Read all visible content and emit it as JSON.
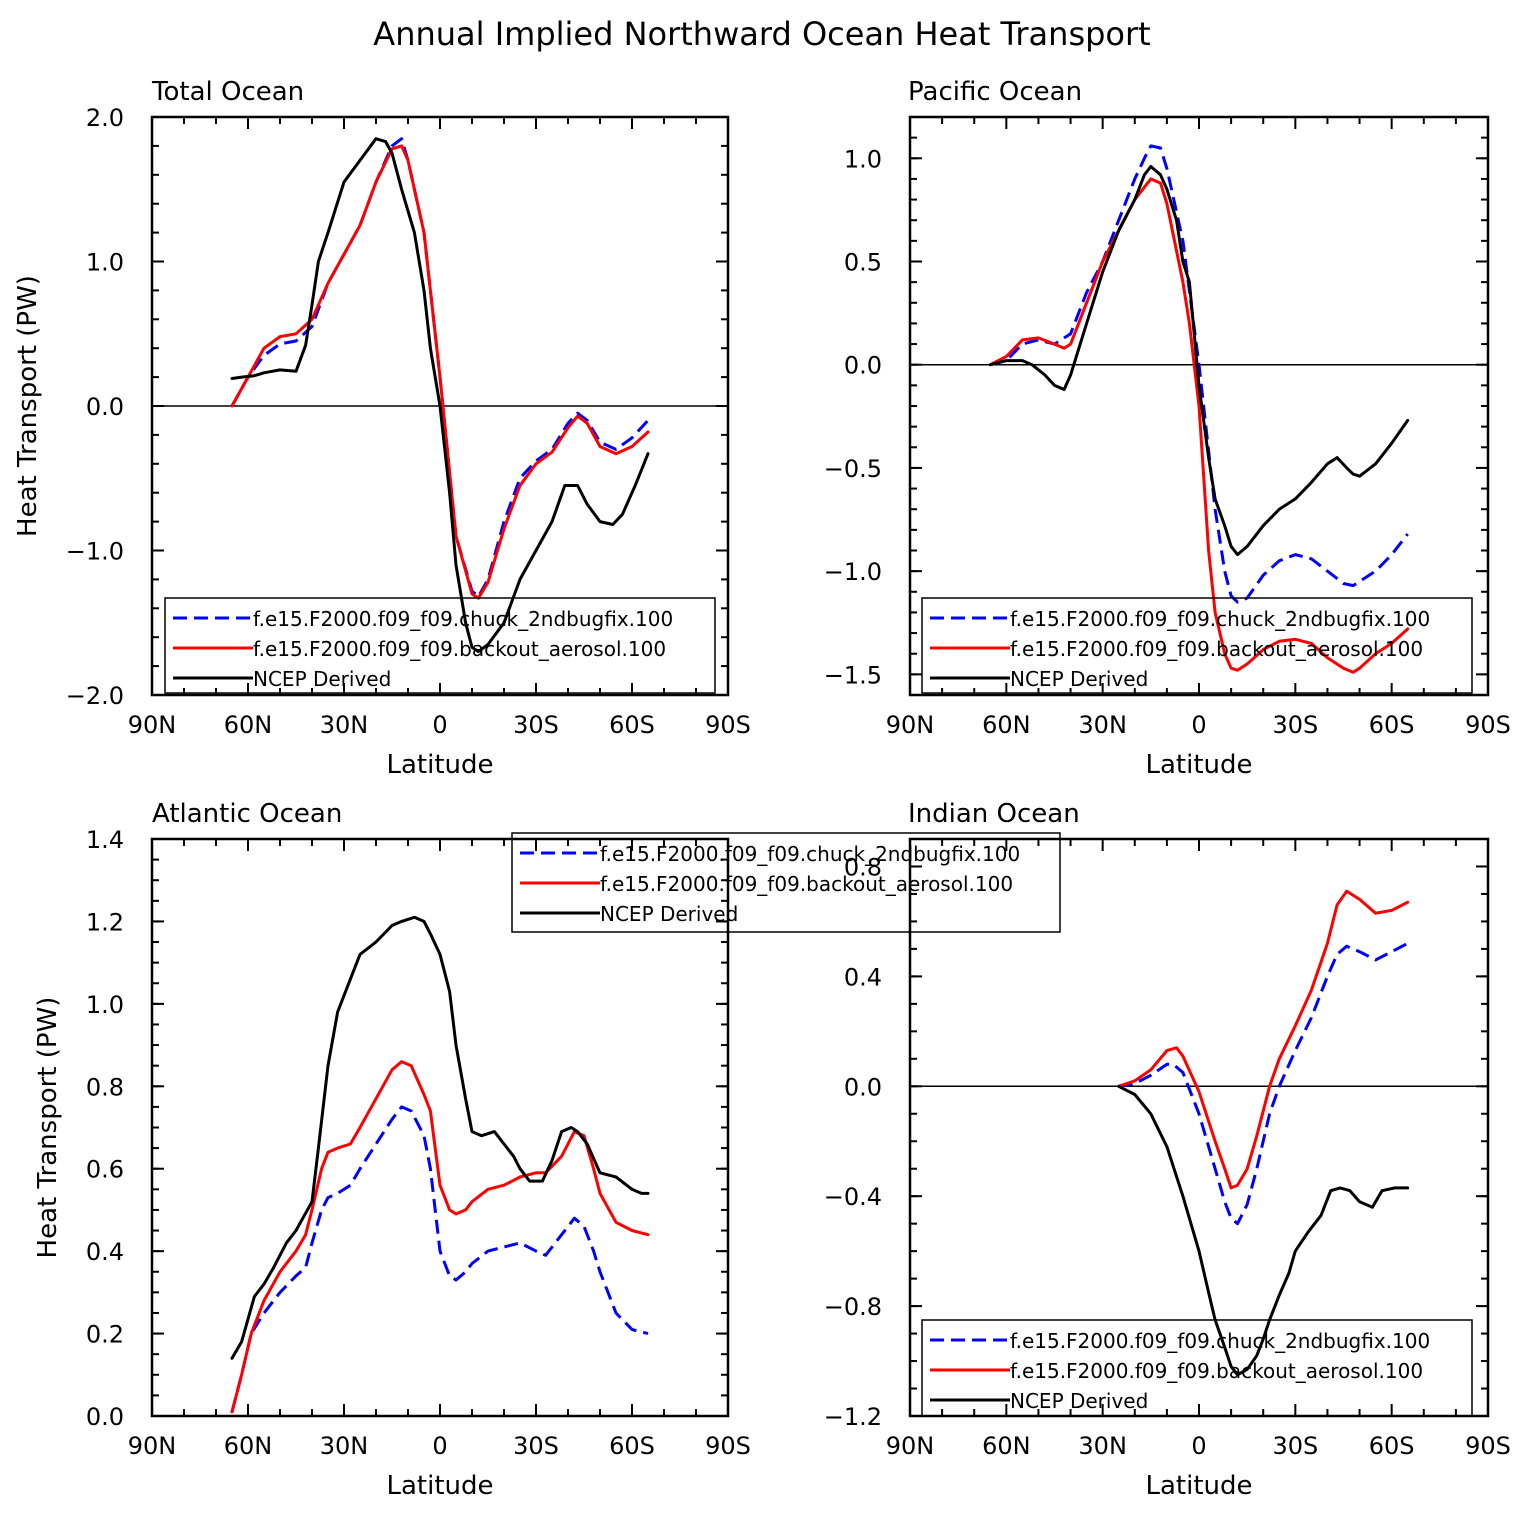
{
  "figure_title": "Annual Implied Northward Ocean Heat Transport",
  "colors": {
    "model1": "#0000ff",
    "model2": "#ff0000",
    "ncep": "#000000"
  },
  "legend": [
    {
      "label": "f.e15.F2000.f09_f09.chuck_2ndbugfix.100",
      "color": "#0000ff",
      "style": "dashed"
    },
    {
      "label": "f.e15.F2000.f09_f09.backout_aerosol.100",
      "color": "#ff0000",
      "style": "solid"
    },
    {
      "label": "NCEP Derived",
      "color": "#000000",
      "style": "solid"
    }
  ],
  "chart_data": [
    {
      "type": "line",
      "title": "Total Ocean",
      "xlabel": "Latitude",
      "ylabel": "Heat Transport (PW)",
      "xlim": [
        90,
        -90
      ],
      "ylim": [
        -2.0,
        2.0
      ],
      "x_ticks": [
        "90N",
        "60N",
        "30N",
        "0",
        "30S",
        "60S",
        "90S"
      ],
      "y_ticks": [
        "−2.0",
        "−1.0",
        "0.0",
        "1.0",
        "2.0"
      ],
      "series": [
        {
          "name": "f.e15.F2000.f09_f09.chuck_2ndbugfix.100",
          "x": [
            65,
            60,
            55,
            50,
            45,
            40,
            35,
            30,
            25,
            20,
            15,
            12,
            10,
            5,
            0,
            -5,
            -10,
            -12,
            -15,
            -20,
            -25,
            -30,
            -35,
            -40,
            -43,
            -46,
            -50,
            -55,
            -60,
            -65
          ],
          "y": [
            0.0,
            0.2,
            0.35,
            0.43,
            0.45,
            0.55,
            0.85,
            1.05,
            1.25,
            1.55,
            1.8,
            1.85,
            1.7,
            1.2,
            0.2,
            -0.9,
            -1.28,
            -1.32,
            -1.2,
            -0.8,
            -0.5,
            -0.38,
            -0.3,
            -0.12,
            -0.05,
            -0.1,
            -0.25,
            -0.3,
            -0.22,
            -0.1
          ]
        },
        {
          "name": "f.e15.F2000.f09_f09.backout_aerosol.100",
          "x": [
            65,
            60,
            55,
            50,
            45,
            40,
            35,
            30,
            25,
            20,
            15,
            12,
            10,
            5,
            0,
            -5,
            -10,
            -12,
            -15,
            -20,
            -25,
            -30,
            -35,
            -40,
            -43,
            -46,
            -50,
            -55,
            -60,
            -65
          ],
          "y": [
            0.0,
            0.2,
            0.4,
            0.48,
            0.5,
            0.6,
            0.85,
            1.05,
            1.25,
            1.55,
            1.78,
            1.8,
            1.7,
            1.2,
            0.2,
            -0.9,
            -1.3,
            -1.33,
            -1.22,
            -0.85,
            -0.55,
            -0.4,
            -0.32,
            -0.15,
            -0.07,
            -0.12,
            -0.28,
            -0.33,
            -0.28,
            -0.18
          ]
        },
        {
          "name": "NCEP Derived",
          "x": [
            65,
            62,
            58,
            55,
            50,
            45,
            42,
            40,
            38,
            35,
            30,
            25,
            20,
            17,
            15,
            12,
            8,
            5,
            3,
            0,
            -3,
            -5,
            -8,
            -10,
            -12,
            -15,
            -20,
            -25,
            -30,
            -35,
            -39,
            -43,
            -46,
            -50,
            -54,
            -57,
            -61,
            -65
          ],
          "y": [
            0.19,
            0.2,
            0.21,
            0.23,
            0.25,
            0.24,
            0.42,
            0.7,
            1.0,
            1.2,
            1.55,
            1.7,
            1.85,
            1.83,
            1.75,
            1.5,
            1.2,
            0.8,
            0.4,
            0.0,
            -0.6,
            -1.1,
            -1.5,
            -1.67,
            -1.7,
            -1.65,
            -1.5,
            -1.2,
            -1.0,
            -0.8,
            -0.55,
            -0.55,
            -0.68,
            -0.8,
            -0.82,
            -0.75,
            -0.55,
            -0.33
          ]
        }
      ]
    },
    {
      "type": "line",
      "title": "Pacific Ocean",
      "xlabel": "Latitude",
      "ylabel": "",
      "xlim": [
        90,
        -90
      ],
      "ylim": [
        -1.6,
        1.2
      ],
      "x_ticks": [
        "90N",
        "60N",
        "30N",
        "0",
        "30S",
        "60S",
        "90S"
      ],
      "y_ticks": [
        "−1.5",
        "−1.0",
        "−0.5",
        "0.0",
        "0.5",
        "1.0"
      ],
      "series": [
        {
          "name": "f.e15.F2000.f09_f09.chuck_2ndbugfix.100",
          "x": [
            65,
            60,
            55,
            50,
            45,
            40,
            35,
            30,
            25,
            20,
            17,
            15,
            12,
            10,
            5,
            0,
            -5,
            -8,
            -10,
            -12,
            -15,
            -20,
            -25,
            -30,
            -35,
            -40,
            -45,
            -48,
            -50,
            -55,
            -60,
            -65
          ],
          "y": [
            0.0,
            0.02,
            0.1,
            0.12,
            0.1,
            0.15,
            0.35,
            0.5,
            0.7,
            0.9,
            1.0,
            1.06,
            1.05,
            0.95,
            0.6,
            0.0,
            -0.7,
            -1.0,
            -1.12,
            -1.15,
            -1.13,
            -1.02,
            -0.95,
            -0.92,
            -0.94,
            -1.0,
            -1.06,
            -1.07,
            -1.05,
            -1.0,
            -0.92,
            -0.82
          ]
        },
        {
          "name": "f.e15.F2000.f09_f09.backout_aerosol.100",
          "x": [
            65,
            60,
            55,
            50,
            45,
            42,
            40,
            35,
            30,
            25,
            20,
            15,
            12,
            10,
            5,
            3,
            0,
            -3,
            -5,
            -8,
            -10,
            -12,
            -15,
            -20,
            -25,
            -30,
            -35,
            -40,
            -45,
            -48,
            -50,
            -55,
            -60,
            -65
          ],
          "y": [
            0.0,
            0.04,
            0.12,
            0.13,
            0.1,
            0.08,
            0.1,
            0.3,
            0.5,
            0.65,
            0.8,
            0.9,
            0.88,
            0.78,
            0.4,
            0.2,
            -0.2,
            -0.9,
            -1.2,
            -1.4,
            -1.47,
            -1.48,
            -1.45,
            -1.38,
            -1.34,
            -1.33,
            -1.35,
            -1.42,
            -1.47,
            -1.49,
            -1.47,
            -1.4,
            -1.35,
            -1.28
          ]
        },
        {
          "name": "NCEP Derived",
          "x": [
            65,
            60,
            55,
            52,
            48,
            45,
            42,
            40,
            35,
            30,
            25,
            20,
            17,
            15,
            12,
            10,
            7,
            5,
            3,
            0,
            -3,
            -5,
            -8,
            -10,
            -12,
            -15,
            -20,
            -25,
            -30,
            -35,
            -40,
            -43,
            -46,
            -48,
            -50,
            -55,
            -60,
            -65
          ],
          "y": [
            0.0,
            0.02,
            0.02,
            0.0,
            -0.05,
            -0.1,
            -0.12,
            -0.05,
            0.2,
            0.45,
            0.65,
            0.8,
            0.92,
            0.96,
            0.92,
            0.85,
            0.7,
            0.5,
            0.4,
            -0.1,
            -0.45,
            -0.65,
            -0.78,
            -0.88,
            -0.92,
            -0.88,
            -0.78,
            -0.7,
            -0.65,
            -0.57,
            -0.48,
            -0.45,
            -0.5,
            -0.53,
            -0.54,
            -0.48,
            -0.38,
            -0.27
          ]
        }
      ]
    },
    {
      "type": "line",
      "title": "Atlantic Ocean",
      "xlabel": "Latitude",
      "ylabel": "Heat Transport (PW)",
      "xlim": [
        90,
        -90
      ],
      "ylim": [
        0.0,
        1.4
      ],
      "x_ticks": [
        "90N",
        "60N",
        "30N",
        "0",
        "30S",
        "60S",
        "90S"
      ],
      "y_ticks": [
        "0.0",
        "0.2",
        "0.4",
        "0.6",
        "0.8",
        "1.0",
        "1.2",
        "1.4"
      ],
      "series": [
        {
          "name": "f.e15.F2000.f09_f09.chuck_2ndbugfix.100",
          "x": [
            65,
            62,
            59,
            55,
            50,
            45,
            42,
            40,
            37,
            35,
            32,
            28,
            25,
            20,
            15,
            12,
            9,
            5,
            3,
            0,
            -3,
            -5,
            -8,
            -10,
            -15,
            -20,
            -25,
            -30,
            -33,
            -38,
            -42,
            -45,
            -48,
            -50,
            -55,
            -60,
            -65
          ],
          "y": [
            0.01,
            0.1,
            0.2,
            0.25,
            0.3,
            0.34,
            0.36,
            0.42,
            0.5,
            0.53,
            0.54,
            0.56,
            0.6,
            0.66,
            0.72,
            0.75,
            0.74,
            0.68,
            0.6,
            0.4,
            0.34,
            0.33,
            0.35,
            0.37,
            0.4,
            0.41,
            0.42,
            0.4,
            0.39,
            0.44,
            0.48,
            0.46,
            0.4,
            0.35,
            0.25,
            0.21,
            0.2
          ]
        },
        {
          "name": "f.e15.F2000.f09_f09.backout_aerosol.100",
          "x": [
            65,
            62,
            59,
            55,
            50,
            45,
            42,
            40,
            37,
            35,
            32,
            28,
            25,
            20,
            15,
            12,
            9,
            5,
            3,
            0,
            -3,
            -5,
            -8,
            -10,
            -15,
            -20,
            -25,
            -30,
            -33,
            -38,
            -42,
            -45,
            -48,
            -50,
            -55,
            -60,
            -65
          ],
          "y": [
            0.01,
            0.1,
            0.2,
            0.28,
            0.35,
            0.4,
            0.44,
            0.5,
            0.6,
            0.64,
            0.65,
            0.66,
            0.7,
            0.77,
            0.84,
            0.86,
            0.85,
            0.78,
            0.74,
            0.56,
            0.5,
            0.49,
            0.5,
            0.52,
            0.55,
            0.56,
            0.58,
            0.59,
            0.59,
            0.63,
            0.69,
            0.68,
            0.6,
            0.54,
            0.47,
            0.45,
            0.44
          ]
        },
        {
          "name": "NCEP Derived",
          "x": [
            65,
            62,
            58,
            55,
            52,
            48,
            45,
            40,
            38,
            35,
            32,
            28,
            25,
            20,
            15,
            12,
            8,
            5,
            3,
            0,
            -3,
            -5,
            -8,
            -10,
            -13,
            -17,
            -20,
            -23,
            -25,
            -28,
            -32,
            -35,
            -38,
            -41,
            -43,
            -46,
            -50,
            -55,
            -60,
            -63,
            -65
          ],
          "y": [
            0.14,
            0.18,
            0.29,
            0.32,
            0.36,
            0.42,
            0.45,
            0.52,
            0.65,
            0.85,
            0.98,
            1.06,
            1.12,
            1.15,
            1.19,
            1.2,
            1.21,
            1.2,
            1.17,
            1.12,
            1.03,
            0.9,
            0.77,
            0.69,
            0.68,
            0.69,
            0.66,
            0.63,
            0.6,
            0.57,
            0.57,
            0.62,
            0.69,
            0.7,
            0.69,
            0.66,
            0.59,
            0.58,
            0.55,
            0.54,
            0.54
          ]
        }
      ]
    },
    {
      "type": "line",
      "title": "Indian Ocean",
      "xlabel": "Latitude",
      "ylabel": "",
      "xlim": [
        90,
        -90
      ],
      "ylim": [
        -1.2,
        0.9
      ],
      "x_ticks": [
        "90N",
        "60N",
        "30N",
        "0",
        "30S",
        "60S",
        "90S"
      ],
      "y_ticks": [
        "−1.2",
        "−0.8",
        "−0.4",
        "0.0",
        "0.4",
        "0.8"
      ],
      "series": [
        {
          "name": "f.e15.F2000.f09_f09.chuck_2ndbugfix.100",
          "x": [
            25,
            20,
            15,
            10,
            8,
            5,
            0,
            -5,
            -8,
            -10,
            -12,
            -15,
            -18,
            -22,
            -25,
            -30,
            -35,
            -40,
            -43,
            -46,
            -50,
            -55,
            -60,
            -65
          ],
          "y": [
            0.0,
            0.01,
            0.04,
            0.08,
            0.08,
            0.05,
            -0.1,
            -0.3,
            -0.42,
            -0.48,
            -0.5,
            -0.43,
            -0.3,
            -0.1,
            0.0,
            0.13,
            0.25,
            0.4,
            0.48,
            0.51,
            0.49,
            0.46,
            0.49,
            0.52
          ]
        },
        {
          "name": "f.e15.F2000.f09_f09.backout_aerosol.100",
          "x": [
            25,
            20,
            15,
            10,
            7,
            5,
            0,
            -5,
            -8,
            -10,
            -12,
            -15,
            -18,
            -22,
            -25,
            -30,
            -35,
            -40,
            -43,
            -46,
            -50,
            -55,
            -60,
            -65
          ],
          "y": [
            0.0,
            0.02,
            0.06,
            0.13,
            0.14,
            0.11,
            -0.02,
            -0.2,
            -0.3,
            -0.37,
            -0.36,
            -0.3,
            -0.18,
            0.0,
            0.1,
            0.22,
            0.35,
            0.52,
            0.66,
            0.71,
            0.68,
            0.63,
            0.64,
            0.67
          ]
        },
        {
          "name": "NCEP Derived",
          "x": [
            25,
            20,
            15,
            10,
            5,
            0,
            -3,
            -5,
            -8,
            -10,
            -12,
            -15,
            -18,
            -20,
            -22,
            -25,
            -28,
            -30,
            -34,
            -38,
            -41,
            -44,
            -47,
            -50,
            -54,
            -57,
            -61,
            -65
          ],
          "y": [
            0.0,
            -0.03,
            -0.1,
            -0.22,
            -0.4,
            -0.6,
            -0.75,
            -0.85,
            -0.95,
            -1.02,
            -1.05,
            -1.03,
            -0.98,
            -0.92,
            -0.85,
            -0.76,
            -0.68,
            -0.6,
            -0.53,
            -0.47,
            -0.38,
            -0.37,
            -0.38,
            -0.42,
            -0.44,
            -0.38,
            -0.37,
            -0.37
          ]
        }
      ]
    }
  ]
}
